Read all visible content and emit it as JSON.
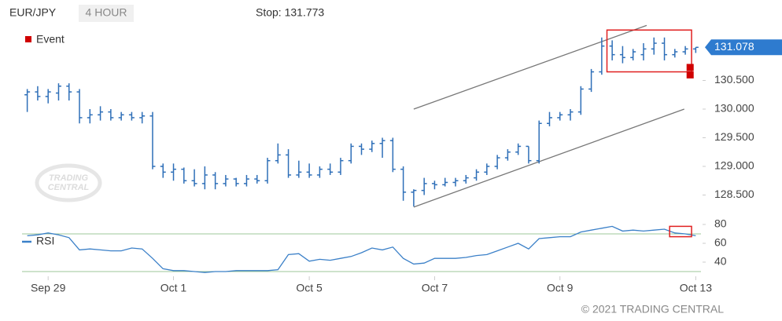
{
  "chart_data": [
    {
      "type": "ohlc",
      "symbol": "EUR/JPY",
      "interval": "4 HOUR",
      "stop_text": "Stop: 131.773",
      "last_price": 131.078,
      "last_price_color": "#2e7bcf",
      "color": "#2e6fb8",
      "watermark": [
        "TRADING",
        "CENTRAL"
      ],
      "x": [
        0,
        1,
        2,
        3,
        4,
        5,
        6,
        7,
        8,
        9,
        10,
        11,
        12,
        13,
        14,
        15,
        16,
        17,
        18,
        19,
        20,
        21,
        22,
        23,
        24,
        25,
        26,
        27,
        28,
        29,
        30,
        31,
        32,
        33,
        34,
        35,
        36,
        37,
        38,
        39,
        40,
        41,
        42,
        43,
        44,
        45,
        46,
        47,
        48,
        49,
        50,
        51,
        52,
        53,
        54,
        55,
        56,
        57,
        58,
        59,
        60,
        61,
        62,
        63,
        64
      ],
      "open": [
        130.25,
        130.3,
        130.22,
        130.28,
        130.4,
        130.3,
        129.85,
        129.9,
        129.95,
        129.85,
        129.9,
        129.85,
        129.88,
        129.0,
        128.9,
        128.95,
        128.75,
        128.7,
        128.85,
        128.7,
        128.78,
        128.7,
        128.78,
        128.75,
        129.1,
        129.2,
        128.85,
        128.9,
        128.85,
        128.95,
        128.9,
        129.1,
        129.35,
        129.3,
        129.4,
        129.45,
        128.95,
        128.55,
        128.58,
        128.7,
        128.68,
        128.72,
        128.75,
        128.8,
        128.9,
        129.0,
        129.15,
        129.25,
        129.35,
        129.1,
        129.75,
        129.85,
        129.9,
        129.95,
        130.35,
        130.65,
        131.1,
        130.95,
        130.9,
        130.95,
        131.05,
        131.15,
        130.95,
        131.0,
        131.05
      ],
      "high": [
        130.35,
        130.4,
        130.35,
        130.45,
        130.45,
        130.35,
        130.0,
        130.05,
        130.0,
        129.95,
        129.95,
        129.95,
        129.95,
        129.05,
        129.05,
        128.98,
        128.95,
        129.0,
        128.9,
        128.85,
        128.8,
        128.85,
        128.85,
        129.15,
        129.4,
        129.3,
        129.1,
        129.05,
        129.0,
        129.05,
        129.15,
        129.4,
        129.4,
        129.45,
        129.5,
        129.5,
        129.0,
        128.6,
        128.8,
        128.75,
        128.8,
        128.8,
        128.85,
        128.95,
        129.05,
        129.2,
        129.3,
        129.4,
        129.35,
        129.8,
        129.95,
        129.95,
        130.0,
        130.4,
        130.7,
        131.25,
        131.2,
        131.1,
        131.05,
        131.15,
        131.25,
        131.25,
        131.05,
        131.1,
        131.08
      ],
      "low": [
        129.95,
        130.15,
        130.1,
        130.15,
        130.15,
        129.75,
        129.75,
        129.8,
        129.8,
        129.8,
        129.8,
        129.75,
        128.95,
        128.8,
        128.75,
        128.7,
        128.65,
        128.6,
        128.6,
        128.65,
        128.65,
        128.65,
        128.7,
        128.7,
        129.05,
        128.8,
        128.8,
        128.8,
        128.8,
        128.85,
        128.85,
        129.05,
        129.2,
        129.25,
        129.15,
        128.9,
        128.4,
        128.3,
        128.5,
        128.6,
        128.65,
        128.65,
        128.7,
        128.75,
        128.85,
        128.95,
        129.1,
        129.2,
        129.05,
        129.05,
        129.7,
        129.8,
        129.8,
        129.9,
        130.3,
        130.6,
        130.85,
        130.8,
        130.85,
        130.85,
        130.95,
        130.85,
        130.9,
        130.95,
        130.98
      ],
      "close": [
        130.3,
        130.22,
        130.3,
        130.4,
        130.3,
        129.85,
        129.9,
        129.95,
        129.85,
        129.9,
        129.85,
        129.88,
        129.0,
        128.9,
        128.95,
        128.75,
        128.7,
        128.85,
        128.7,
        128.78,
        128.7,
        128.78,
        128.75,
        129.1,
        129.2,
        128.85,
        128.9,
        128.85,
        128.95,
        128.9,
        129.1,
        129.35,
        129.3,
        129.4,
        129.45,
        128.95,
        128.55,
        128.58,
        128.7,
        128.68,
        128.72,
        128.75,
        128.8,
        128.9,
        129.0,
        129.15,
        129.25,
        129.35,
        129.1,
        129.75,
        129.85,
        129.9,
        129.95,
        130.35,
        130.65,
        131.1,
        130.95,
        130.9,
        131.0,
        131.05,
        131.15,
        130.95,
        131.0,
        131.05,
        131.078
      ],
      "xlim": [
        -0.5,
        64.5
      ],
      "ylim": [
        128.2,
        131.5
      ],
      "yticks": [
        {
          "value": 128.5,
          "label": "128.500"
        },
        {
          "value": 129,
          "label": "129.000"
        },
        {
          "value": 129.5,
          "label": "129.500"
        },
        {
          "value": 130,
          "label": "130.000"
        },
        {
          "value": 130.5,
          "label": "130.500"
        }
      ],
      "channel_color": "#777777",
      "channel": [
        {
          "x": [
            37,
            59.3
          ],
          "y": [
            130.0,
            131.46
          ]
        },
        {
          "x": [
            37,
            62.9
          ],
          "y": [
            128.29,
            130.0
          ]
        }
      ],
      "highlight_color": "#e02020",
      "highlight": {
        "x": [
          55.5,
          63.6
        ],
        "y": [
          130.65,
          131.38
        ]
      },
      "events": {
        "name": "Event",
        "color": "#d00000",
        "x": [
          63.5,
          63.5
        ],
        "y": [
          130.72,
          130.59
        ]
      }
    },
    {
      "type": "line",
      "name": "RSI",
      "color": "#3b80c8",
      "values": [
        68,
        69,
        71,
        69,
        66,
        53,
        54,
        53,
        52,
        52,
        55,
        54,
        44,
        33,
        31,
        31,
        30,
        29,
        30,
        30,
        31,
        31,
        31,
        31,
        32,
        48,
        49,
        41,
        43,
        42,
        44,
        46,
        50,
        55,
        53,
        56,
        44,
        38,
        39,
        44,
        44,
        44,
        45,
        47,
        48,
        52,
        56,
        60,
        54,
        65,
        66,
        67,
        67,
        72,
        74,
        76,
        78,
        73,
        74,
        73,
        74,
        75,
        71,
        70,
        68
      ],
      "xlim": [
        -0.5,
        64.5
      ],
      "ylim": [
        27,
        86
      ],
      "yticks": [
        40,
        60,
        80
      ],
      "levels": [
        30,
        70
      ],
      "level_color": "#9cc79a",
      "highlight": {
        "x": [
          61.5,
          63.6
        ],
        "y": [
          67,
          78
        ]
      },
      "xticks": [
        {
          "value": 2,
          "label": "Sep 29"
        },
        {
          "value": 14,
          "label": "Oct 1"
        },
        {
          "value": 27,
          "label": "Oct 5"
        },
        {
          "value": 39,
          "label": "Oct 7"
        },
        {
          "value": 51,
          "label": "Oct 9"
        },
        {
          "value": 64,
          "label": "Oct 13"
        }
      ],
      "copyright": "© 2021 TRADING CENTRAL"
    }
  ]
}
